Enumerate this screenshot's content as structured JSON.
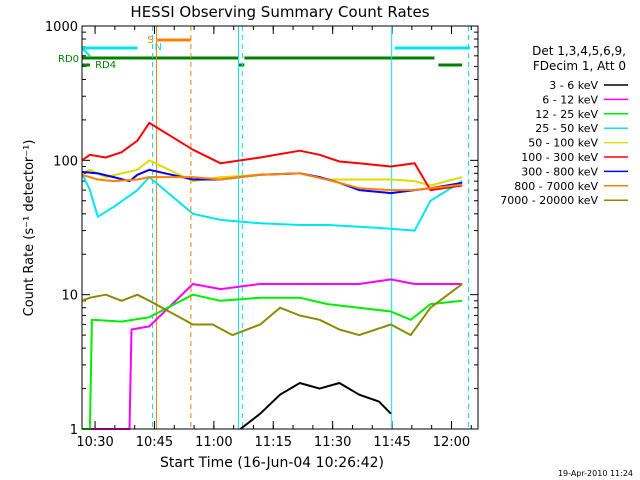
{
  "chart_data": {
    "type": "line",
    "title": "HESSI Observing Summary Count Rates",
    "xlabel": "Start Time (16-Jun-04 10:26:42)",
    "ylabel": "Count Rate (s⁻¹ detector⁻¹)",
    "yscale": "log",
    "ylim": [
      1,
      1000
    ],
    "xlim_minutes": [
      0,
      100
    ],
    "x_ticks": [
      {
        "label": "10:30",
        "minute": 3.3
      },
      {
        "label": "10:45",
        "minute": 18.3
      },
      {
        "label": "11:00",
        "minute": 33.3
      },
      {
        "label": "11:15",
        "minute": 48.3
      },
      {
        "label": "11:30",
        "minute": 63.3
      },
      {
        "label": "11:45",
        "minute": 78.3
      },
      {
        "label": "12:00",
        "minute": 93.3
      }
    ],
    "y_ticks": [
      {
        "label": "1",
        "value": 1
      },
      {
        "label": "10",
        "value": 10
      },
      {
        "label": "100",
        "value": 100
      },
      {
        "label": "1000",
        "value": 1000
      }
    ],
    "legend_header": [
      "Det 1,3,4,5,6,9,",
      "FDecim 1, Att 0"
    ],
    "legend_position": "right",
    "series": [
      {
        "name": "3 - 6 keV",
        "color": "#000000",
        "points": [
          [
            40,
            1.0
          ],
          [
            45,
            1.3
          ],
          [
            50,
            1.8
          ],
          [
            55,
            2.2
          ],
          [
            60,
            2.0
          ],
          [
            65,
            2.2
          ],
          [
            70,
            1.8
          ],
          [
            75,
            1.6
          ],
          [
            78,
            1.3
          ]
        ]
      },
      {
        "name": "6 - 12 keV",
        "color": "#ff00ff",
        "points": [
          [
            0,
            1.0
          ],
          [
            12,
            1.0
          ],
          [
            12.5,
            5.5
          ],
          [
            17,
            5.8
          ],
          [
            28,
            12
          ],
          [
            35,
            11
          ],
          [
            45,
            12
          ],
          [
            55,
            12
          ],
          [
            62,
            12
          ],
          [
            70,
            12
          ],
          [
            78,
            13
          ],
          [
            84,
            12
          ],
          [
            88,
            12
          ],
          [
            96,
            12
          ]
        ]
      },
      {
        "name": "12 - 25 keV",
        "color": "#00ee00",
        "points": [
          [
            0,
            1.0
          ],
          [
            2,
            1.0
          ],
          [
            2.5,
            6.5
          ],
          [
            10,
            6.3
          ],
          [
            17,
            6.8
          ],
          [
            28,
            10
          ],
          [
            35,
            9
          ],
          [
            45,
            9.5
          ],
          [
            55,
            9.5
          ],
          [
            62,
            8.5
          ],
          [
            70,
            8
          ],
          [
            78,
            7.5
          ],
          [
            83,
            6.5
          ],
          [
            88,
            8.5
          ],
          [
            96,
            9
          ]
        ]
      },
      {
        "name": "25 - 50 keV",
        "color": "#00e5ee",
        "points": [
          [
            0,
            80
          ],
          [
            2,
            60
          ],
          [
            4,
            38
          ],
          [
            8,
            45
          ],
          [
            14,
            60
          ],
          [
            17,
            75
          ],
          [
            28,
            40
          ],
          [
            35,
            36
          ],
          [
            45,
            34
          ],
          [
            55,
            33
          ],
          [
            62,
            33
          ],
          [
            70,
            32
          ],
          [
            78,
            31
          ],
          [
            84,
            30
          ],
          [
            88,
            50
          ],
          [
            96,
            70
          ]
        ]
      },
      {
        "name": "50 - 100 keV",
        "color": "#dddd00",
        "points": [
          [
            0,
            80
          ],
          [
            2,
            85
          ],
          [
            6,
            75
          ],
          [
            10,
            80
          ],
          [
            14,
            85
          ],
          [
            17,
            100
          ],
          [
            28,
            70
          ],
          [
            35,
            75
          ],
          [
            45,
            78
          ],
          [
            55,
            80
          ],
          [
            62,
            72
          ],
          [
            70,
            72
          ],
          [
            78,
            72
          ],
          [
            84,
            70
          ],
          [
            88,
            65
          ],
          [
            96,
            75
          ]
        ]
      },
      {
        "name": "100 - 300 keV",
        "color": "#ff0000",
        "points": [
          [
            0,
            100
          ],
          [
            2,
            110
          ],
          [
            6,
            105
          ],
          [
            10,
            115
          ],
          [
            14,
            140
          ],
          [
            17,
            190
          ],
          [
            28,
            120
          ],
          [
            35,
            95
          ],
          [
            45,
            105
          ],
          [
            55,
            118
          ],
          [
            60,
            110
          ],
          [
            65,
            98
          ],
          [
            70,
            95
          ],
          [
            78,
            90
          ],
          [
            84,
            95
          ],
          [
            88,
            60
          ],
          [
            96,
            65
          ]
        ]
      },
      {
        "name": "300 - 800 keV",
        "color": "#0000ff",
        "points": [
          [
            0,
            82
          ],
          [
            4,
            80
          ],
          [
            8,
            75
          ],
          [
            12,
            70
          ],
          [
            14,
            78
          ],
          [
            17,
            85
          ],
          [
            28,
            72
          ],
          [
            35,
            72
          ],
          [
            45,
            78
          ],
          [
            55,
            80
          ],
          [
            60,
            75
          ],
          [
            65,
            68
          ],
          [
            70,
            60
          ],
          [
            78,
            57
          ],
          [
            84,
            60
          ],
          [
            88,
            62
          ],
          [
            96,
            68
          ]
        ]
      },
      {
        "name": "800 - 7000 keV",
        "color": "#ff8000",
        "points": [
          [
            0,
            78
          ],
          [
            4,
            72
          ],
          [
            8,
            70
          ],
          [
            14,
            72
          ],
          [
            17,
            75
          ],
          [
            28,
            75
          ],
          [
            35,
            72
          ],
          [
            45,
            78
          ],
          [
            55,
            80
          ],
          [
            60,
            74
          ],
          [
            65,
            68
          ],
          [
            70,
            62
          ],
          [
            78,
            60
          ],
          [
            84,
            60
          ],
          [
            88,
            62
          ],
          [
            96,
            66
          ]
        ]
      },
      {
        "name": "7000 - 20000 keV",
        "color": "#8b8b00",
        "points": [
          [
            0,
            9
          ],
          [
            2,
            9.5
          ],
          [
            6,
            10
          ],
          [
            10,
            9
          ],
          [
            14,
            10
          ],
          [
            17,
            9
          ],
          [
            28,
            6
          ],
          [
            33,
            6
          ],
          [
            38,
            5
          ],
          [
            45,
            6
          ],
          [
            50,
            8
          ],
          [
            55,
            7
          ],
          [
            60,
            6.5
          ],
          [
            65,
            5.5
          ],
          [
            70,
            5
          ],
          [
            78,
            6
          ],
          [
            83,
            5
          ],
          [
            88,
            8
          ],
          [
            96,
            12
          ]
        ]
      }
    ],
    "annotations": {
      "rd_labels": [
        "RD0",
        "RD4"
      ],
      "event_labels": [
        "S",
        "N"
      ]
    }
  },
  "footer": {
    "date_stamp": "19-Apr-2010 11:24"
  }
}
